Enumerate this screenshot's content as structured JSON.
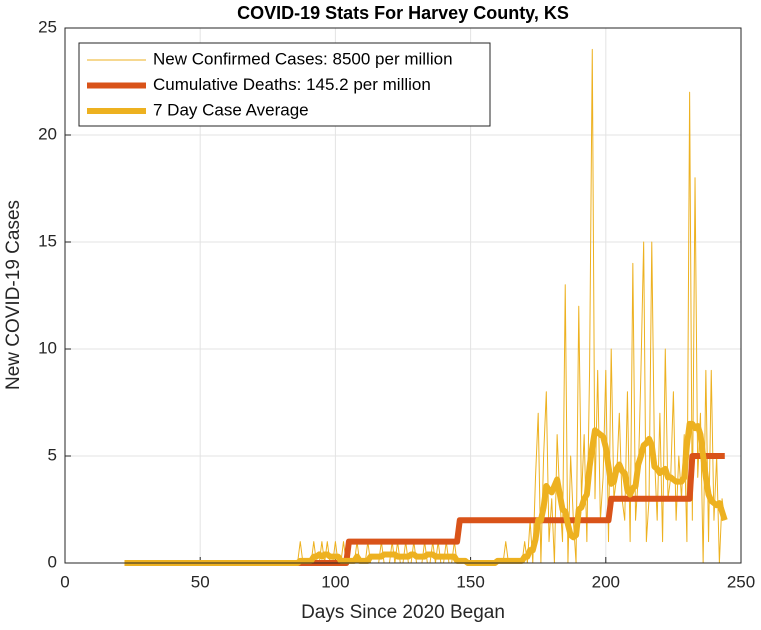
{
  "chart_data": {
    "type": "line",
    "title": "COVID-19 Stats For Harvey County, KS",
    "xlabel": "Days Since 2020 Began",
    "ylabel": "New COVID-19 Cases",
    "xlim": [
      0,
      250
    ],
    "xticks": [
      0,
      50,
      100,
      150,
      200,
      250
    ],
    "ylim": [
      0,
      25
    ],
    "yticks": [
      0,
      5,
      10,
      15,
      20,
      25
    ],
    "grid": true,
    "legend": "northwest",
    "x": [
      22,
      23,
      24,
      25,
      26,
      27,
      28,
      29,
      30,
      31,
      32,
      33,
      34,
      35,
      36,
      37,
      38,
      39,
      40,
      41,
      42,
      43,
      44,
      45,
      46,
      47,
      48,
      49,
      50,
      51,
      52,
      53,
      54,
      55,
      56,
      57,
      58,
      59,
      60,
      61,
      62,
      63,
      64,
      65,
      66,
      67,
      68,
      69,
      70,
      71,
      72,
      73,
      74,
      75,
      76,
      77,
      78,
      79,
      80,
      81,
      82,
      83,
      84,
      85,
      86,
      87,
      88,
      89,
      90,
      91,
      92,
      93,
      94,
      95,
      96,
      97,
      98,
      99,
      100,
      101,
      102,
      103,
      104,
      105,
      106,
      107,
      108,
      109,
      110,
      111,
      112,
      113,
      114,
      115,
      116,
      117,
      118,
      119,
      120,
      121,
      122,
      123,
      124,
      125,
      126,
      127,
      128,
      129,
      130,
      131,
      132,
      133,
      134,
      135,
      136,
      137,
      138,
      139,
      140,
      141,
      142,
      143,
      144,
      145,
      146,
      147,
      148,
      149,
      150,
      151,
      152,
      153,
      154,
      155,
      156,
      157,
      158,
      159,
      160,
      161,
      162,
      163,
      164,
      165,
      166,
      167,
      168,
      169,
      170,
      171,
      172,
      173,
      174,
      175,
      176,
      177,
      178,
      179,
      180,
      181,
      182,
      183,
      184,
      185,
      186,
      187,
      188,
      189,
      190,
      191,
      192,
      193,
      194,
      195,
      196,
      197,
      198,
      199,
      200,
      201,
      202,
      203,
      204,
      205,
      206,
      207,
      208,
      209,
      210,
      211,
      212,
      213,
      214,
      215,
      216,
      217,
      218,
      219,
      220,
      221,
      222,
      223,
      224,
      225,
      226,
      227,
      228,
      229,
      230,
      231,
      232,
      233,
      234,
      235,
      236,
      237,
      238,
      239,
      240,
      241,
      242,
      243,
      244
    ],
    "series": [
      {
        "name": "New Confirmed Cases: 8500 per million",
        "color": "#EDB120",
        "width": 1,
        "values": [
          0,
          0,
          0,
          0,
          0,
          0,
          0,
          0,
          0,
          0,
          0,
          0,
          0,
          0,
          0,
          0,
          0,
          0,
          0,
          0,
          0,
          0,
          0,
          0,
          0,
          0,
          0,
          0,
          0,
          0,
          0,
          0,
          0,
          0,
          0,
          0,
          0,
          0,
          0,
          0,
          0,
          0,
          0,
          0,
          0,
          0,
          0,
          0,
          0,
          0,
          0,
          0,
          0,
          0,
          0,
          0,
          0,
          0,
          0,
          0,
          0,
          0,
          0,
          0,
          0,
          1,
          0,
          0,
          0,
          0,
          1,
          0,
          0,
          1,
          0,
          1,
          0,
          0,
          1,
          0,
          0,
          1,
          0,
          0,
          0,
          0,
          1,
          0,
          0,
          0,
          1,
          0,
          0,
          0,
          0,
          1,
          0,
          0,
          0,
          1,
          0,
          1,
          0,
          0,
          1,
          0,
          0,
          1,
          0,
          0,
          0,
          1,
          0,
          0,
          1,
          0,
          1,
          0,
          0,
          1,
          0,
          0,
          1,
          0,
          0,
          0,
          0,
          0,
          0,
          0,
          0,
          0,
          0,
          0,
          0,
          0,
          0,
          0,
          0,
          0,
          0,
          1,
          0,
          0,
          0,
          0,
          0,
          0,
          1,
          0,
          2,
          0,
          4,
          7,
          0,
          5,
          8,
          1,
          3,
          0,
          6,
          3,
          1,
          13,
          0,
          5,
          2,
          0,
          12,
          3,
          6,
          1,
          9,
          24,
          3,
          9,
          2,
          4,
          9,
          1,
          10,
          3,
          4,
          7,
          3,
          2,
          8,
          1,
          14,
          2,
          4,
          9,
          15,
          1,
          3,
          15,
          5,
          2,
          7,
          1,
          10,
          3,
          4,
          8,
          2,
          5,
          3,
          6,
          1,
          22,
          2,
          18,
          4,
          7,
          0,
          9,
          1,
          9,
          2,
          5,
          0,
          3,
          2
        ]
      },
      {
        "name": "Cumulative Deaths: 145.2 per million",
        "color": "#D95319",
        "width": 6,
        "values": [
          0,
          0,
          0,
          0,
          0,
          0,
          0,
          0,
          0,
          0,
          0,
          0,
          0,
          0,
          0,
          0,
          0,
          0,
          0,
          0,
          0,
          0,
          0,
          0,
          0,
          0,
          0,
          0,
          0,
          0,
          0,
          0,
          0,
          0,
          0,
          0,
          0,
          0,
          0,
          0,
          0,
          0,
          0,
          0,
          0,
          0,
          0,
          0,
          0,
          0,
          0,
          0,
          0,
          0,
          0,
          0,
          0,
          0,
          0,
          0,
          0,
          0,
          0,
          0,
          0,
          0,
          0,
          0,
          0,
          0,
          0,
          0,
          0,
          0,
          0,
          0,
          0,
          0,
          0,
          0,
          0,
          0,
          0,
          1,
          1,
          1,
          1,
          1,
          1,
          1,
          1,
          1,
          1,
          1,
          1,
          1,
          1,
          1,
          1,
          1,
          1,
          1,
          1,
          1,
          1,
          1,
          1,
          1,
          1,
          1,
          1,
          1,
          1,
          1,
          1,
          1,
          1,
          1,
          1,
          1,
          1,
          1,
          1,
          1,
          2,
          2,
          2,
          2,
          2,
          2,
          2,
          2,
          2,
          2,
          2,
          2,
          2,
          2,
          2,
          2,
          2,
          2,
          2,
          2,
          2,
          2,
          2,
          2,
          2,
          2,
          2,
          2,
          2,
          2,
          2,
          2,
          2,
          2,
          2,
          2,
          2,
          2,
          2,
          2,
          2,
          2,
          2,
          2,
          2,
          2,
          2,
          2,
          2,
          2,
          2,
          2,
          2,
          2,
          2,
          2,
          3,
          3,
          3,
          3,
          3,
          3,
          3,
          3,
          3,
          3,
          3,
          3,
          3,
          3,
          3,
          3,
          3,
          3,
          3,
          3,
          3,
          3,
          3,
          3,
          3,
          3,
          3,
          3,
          3,
          3,
          5,
          5,
          5,
          5,
          5,
          5,
          5,
          5,
          5,
          5,
          5,
          5,
          5
        ]
      },
      {
        "name": "7 Day Case Average",
        "color": "#EDB120",
        "width": 6,
        "values": [
          0,
          0,
          0,
          0,
          0,
          0,
          0,
          0,
          0,
          0,
          0,
          0,
          0,
          0,
          0,
          0,
          0,
          0,
          0,
          0,
          0,
          0,
          0,
          0,
          0,
          0,
          0,
          0,
          0,
          0,
          0,
          0,
          0,
          0,
          0,
          0,
          0,
          0,
          0,
          0,
          0,
          0,
          0,
          0,
          0,
          0,
          0,
          0,
          0,
          0,
          0,
          0,
          0,
          0,
          0,
          0,
          0,
          0,
          0,
          0,
          0,
          0,
          0,
          0,
          0,
          0.1,
          0.1,
          0.1,
          0.1,
          0.1,
          0.3,
          0.3,
          0.4,
          0.3,
          0.4,
          0.4,
          0.3,
          0.3,
          0.3,
          0.3,
          0.1,
          0.1,
          0.1,
          0.1,
          0.1,
          0.1,
          0.3,
          0.1,
          0.1,
          0.1,
          0.1,
          0.3,
          0.3,
          0.3,
          0.3,
          0.3,
          0.4,
          0.4,
          0.4,
          0.4,
          0.4,
          0.3,
          0.3,
          0.3,
          0.3,
          0.3,
          0.4,
          0.4,
          0.3,
          0.3,
          0.3,
          0.3,
          0.4,
          0.4,
          0.4,
          0.3,
          0.3,
          0.3,
          0.3,
          0.3,
          0.3,
          0.3,
          0.3,
          0.1,
          0.1,
          0.1,
          0.1,
          0,
          0,
          0,
          0,
          0,
          0,
          0,
          0,
          0,
          0,
          0,
          0.1,
          0.1,
          0.1,
          0.1,
          0.1,
          0.1,
          0.1,
          0.1,
          0.1,
          0.1,
          0.3,
          0.3,
          0.6,
          0.6,
          1.1,
          2,
          2,
          2.6,
          3.6,
          3.4,
          3.3,
          3.6,
          3.9,
          3.2,
          2.5,
          2.4,
          1.8,
          1.3,
          1.2,
          1.3,
          2.5,
          2.6,
          3,
          3.2,
          4.5,
          5.4,
          6.2,
          6.1,
          6,
          5.9,
          5.4,
          4.5,
          3.7,
          3.8,
          4.4,
          4.6,
          4.3,
          4.2,
          3.4,
          3.2,
          3.5,
          3.6,
          4.6,
          5,
          5.5,
          5.6,
          5.8,
          5.5,
          4.5,
          4.4,
          4.2,
          4.3,
          4.4,
          4,
          4,
          3.9,
          3.8,
          3.8,
          3.8,
          4,
          5.5,
          6.5,
          6.5,
          6.3,
          6.4,
          6,
          5,
          4,
          3.2,
          2.9,
          2.8,
          2.7,
          2.8,
          2.4,
          2
        ]
      }
    ]
  }
}
